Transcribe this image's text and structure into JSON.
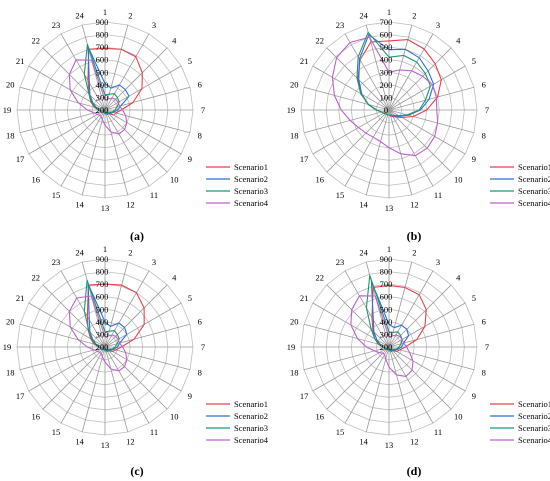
{
  "chart_data": [
    {
      "type": "radar",
      "panel_label": "(a)",
      "categories": [
        "1",
        "2",
        "3",
        "4",
        "5",
        "6",
        "7",
        "8",
        "9",
        "10",
        "11",
        "12",
        "13",
        "14",
        "15",
        "16",
        "17",
        "18",
        "19",
        "20",
        "21",
        "22",
        "23",
        "24"
      ],
      "r_ticks": [
        200,
        300,
        400,
        500,
        600,
        700,
        800,
        900
      ],
      "r_range": [
        200,
        900
      ],
      "grid": true,
      "legend_position": "bottom-right",
      "series": [
        {
          "name": "Scenario1",
          "color": "#e8414a",
          "values": [
            690,
            700,
            690,
            620,
            540,
            430,
            330,
            290,
            280,
            240,
            230,
            230,
            220,
            220,
            220,
            220,
            220,
            230,
            250,
            290,
            330,
            380,
            470,
            700
          ]
        },
        {
          "name": "Scenario2",
          "color": "#2f6fd6",
          "values": [
            410,
            380,
            430,
            430,
            420,
            330,
            300,
            270,
            250,
            240,
            240,
            230,
            230,
            220,
            220,
            220,
            220,
            230,
            250,
            270,
            310,
            370,
            450,
            720
          ]
        },
        {
          "name": "Scenario3",
          "color": "#1a9a6c",
          "values": [
            320,
            330,
            350,
            340,
            330,
            300,
            280,
            260,
            240,
            230,
            230,
            220,
            220,
            220,
            220,
            220,
            220,
            230,
            250,
            280,
            320,
            380,
            530,
            740
          ]
        },
        {
          "name": "Scenario4",
          "color": "#c05fd1",
          "values": [
            280,
            290,
            310,
            320,
            320,
            320,
            340,
            370,
            400,
            420,
            420,
            380,
            320,
            280,
            260,
            260,
            270,
            290,
            340,
            420,
            520,
            600,
            660,
            610
          ]
        }
      ]
    },
    {
      "type": "radar",
      "panel_label": "(b)",
      "categories": [
        "1",
        "2",
        "3",
        "4",
        "5",
        "6",
        "7",
        "8",
        "9",
        "10",
        "11",
        "12",
        "13",
        "14",
        "15",
        "16",
        "17",
        "18",
        "19",
        "20",
        "21",
        "22",
        "23",
        "24"
      ],
      "r_ticks": [
        0,
        100,
        200,
        300,
        400,
        500,
        600,
        700
      ],
      "r_range": [
        0,
        700
      ],
      "grid": true,
      "legend_position": "bottom-right",
      "series": [
        {
          "name": "Scenario1",
          "color": "#e8414a",
          "values": [
            550,
            580,
            560,
            520,
            480,
            400,
            300,
            200,
            120,
            80,
            60,
            50,
            40,
            40,
            40,
            40,
            50,
            60,
            100,
            170,
            250,
            350,
            460,
            560
          ]
        },
        {
          "name": "Scenario2",
          "color": "#2f6fd6",
          "values": [
            480,
            500,
            480,
            440,
            410,
            330,
            250,
            160,
            100,
            70,
            50,
            40,
            40,
            40,
            40,
            40,
            50,
            60,
            100,
            170,
            250,
            340,
            470,
            620
          ]
        },
        {
          "name": "Scenario3",
          "color": "#1a9a6c",
          "values": [
            420,
            450,
            440,
            410,
            380,
            300,
            240,
            150,
            90,
            60,
            50,
            40,
            40,
            40,
            40,
            40,
            50,
            60,
            100,
            170,
            260,
            360,
            490,
            640
          ]
        },
        {
          "name": "Scenario4",
          "color": "#c05fd1",
          "values": [
            300,
            330,
            360,
            380,
            400,
            390,
            380,
            400,
            420,
            430,
            420,
            360,
            300,
            260,
            250,
            260,
            280,
            320,
            380,
            450,
            520,
            590,
            620,
            600
          ]
        }
      ]
    },
    {
      "type": "radar",
      "panel_label": "(c)",
      "categories": [
        "1",
        "2",
        "3",
        "4",
        "5",
        "6",
        "7",
        "8",
        "9",
        "10",
        "11",
        "12",
        "13",
        "14",
        "15",
        "16",
        "17",
        "18",
        "19",
        "20",
        "21",
        "22",
        "23",
        "24"
      ],
      "r_ticks": [
        200,
        300,
        400,
        500,
        600,
        700,
        800,
        900
      ],
      "r_range": [
        200,
        900
      ],
      "grid": true,
      "legend_position": "bottom-right",
      "series": [
        {
          "name": "Scenario1",
          "color": "#e8414a",
          "values": [
            700,
            710,
            700,
            640,
            560,
            440,
            330,
            290,
            270,
            240,
            230,
            230,
            220,
            220,
            220,
            220,
            220,
            230,
            250,
            290,
            330,
            390,
            480,
            710
          ]
        },
        {
          "name": "Scenario2",
          "color": "#2f6fd6",
          "values": [
            400,
            370,
            420,
            420,
            400,
            320,
            300,
            270,
            250,
            240,
            240,
            230,
            230,
            220,
            220,
            220,
            220,
            230,
            250,
            270,
            310,
            370,
            450,
            720
          ]
        },
        {
          "name": "Scenario3",
          "color": "#1a9a6c",
          "values": [
            320,
            330,
            350,
            340,
            330,
            300,
            280,
            260,
            240,
            230,
            230,
            220,
            220,
            220,
            220,
            220,
            220,
            230,
            250,
            280,
            320,
            380,
            530,
            750
          ]
        },
        {
          "name": "Scenario4",
          "color": "#c05fd1",
          "values": [
            280,
            290,
            310,
            320,
            320,
            320,
            340,
            370,
            400,
            420,
            420,
            380,
            320,
            280,
            260,
            260,
            270,
            290,
            340,
            420,
            520,
            600,
            650,
            620
          ]
        }
      ]
    },
    {
      "type": "radar",
      "panel_label": "(d)",
      "categories": [
        "1",
        "2",
        "3",
        "4",
        "5",
        "6",
        "7",
        "8",
        "9",
        "10",
        "11",
        "12",
        "13",
        "14",
        "15",
        "16",
        "17",
        "18",
        "19",
        "20",
        "21",
        "22",
        "23",
        "24"
      ],
      "r_ticks": [
        200,
        300,
        400,
        500,
        600,
        700,
        800,
        900
      ],
      "r_range": [
        200,
        900
      ],
      "grid": true,
      "legend_position": "bottom-right",
      "series": [
        {
          "name": "Scenario1",
          "color": "#e8414a",
          "values": [
            690,
            690,
            680,
            620,
            530,
            430,
            330,
            290,
            270,
            240,
            230,
            230,
            220,
            220,
            220,
            220,
            220,
            230,
            250,
            290,
            330,
            380,
            470,
            690
          ]
        },
        {
          "name": "Scenario2",
          "color": "#2f6fd6",
          "values": [
            380,
            360,
            400,
            400,
            380,
            320,
            300,
            270,
            250,
            240,
            240,
            230,
            230,
            220,
            220,
            220,
            220,
            230,
            250,
            270,
            310,
            370,
            450,
            740
          ]
        },
        {
          "name": "Scenario3",
          "color": "#1a9a6c",
          "values": [
            320,
            320,
            340,
            330,
            320,
            300,
            280,
            260,
            240,
            230,
            230,
            220,
            220,
            220,
            220,
            220,
            220,
            230,
            250,
            280,
            330,
            400,
            560,
            790
          ]
        },
        {
          "name": "Scenario4",
          "color": "#c05fd1",
          "values": [
            280,
            290,
            310,
            320,
            320,
            320,
            340,
            370,
            420,
            460,
            470,
            430,
            360,
            300,
            270,
            270,
            290,
            320,
            380,
            460,
            550,
            620,
            670,
            620
          ]
        }
      ]
    }
  ]
}
